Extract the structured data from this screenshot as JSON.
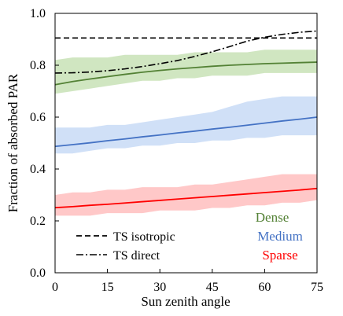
{
  "chart_data": {
    "type": "line",
    "xlabel": "Sun zenith angle",
    "ylabel": "Fraction of absorbed PAR",
    "xlim": [
      0,
      75
    ],
    "ylim": [
      0,
      1.0
    ],
    "x_ticks": [
      "0",
      "15",
      "30",
      "45",
      "60",
      "75"
    ],
    "y_ticks": [
      "0.0",
      "0.2",
      "0.4",
      "0.6",
      "0.8",
      "1.0"
    ],
    "grid": false,
    "series": [
      {
        "name": "Dense",
        "color": "#538135",
        "band_color": "#a9d18e",
        "x": [
          0,
          5,
          10,
          15,
          20,
          25,
          30,
          35,
          40,
          45,
          50,
          55,
          60,
          65,
          70,
          75
        ],
        "values": [
          0.725,
          0.737,
          0.747,
          0.756,
          0.765,
          0.773,
          0.78,
          0.786,
          0.791,
          0.796,
          0.8,
          0.803,
          0.806,
          0.808,
          0.81,
          0.812
        ],
        "band_low": [
          0.69,
          0.7,
          0.71,
          0.72,
          0.73,
          0.74,
          0.74,
          0.75,
          0.75,
          0.76,
          0.76,
          0.76,
          0.77,
          0.77,
          0.77,
          0.77
        ],
        "band_high": [
          0.82,
          0.83,
          0.83,
          0.83,
          0.84,
          0.84,
          0.84,
          0.84,
          0.85,
          0.85,
          0.85,
          0.85,
          0.86,
          0.86,
          0.86,
          0.86
        ]
      },
      {
        "name": "Medium",
        "color": "#4472c4",
        "band_color": "#a9c7f0",
        "x": [
          0,
          5,
          10,
          15,
          20,
          25,
          30,
          35,
          40,
          45,
          50,
          55,
          60,
          65,
          70,
          75
        ],
        "values": [
          0.487,
          0.494,
          0.501,
          0.509,
          0.516,
          0.524,
          0.531,
          0.539,
          0.546,
          0.554,
          0.561,
          0.569,
          0.577,
          0.585,
          0.592,
          0.6
        ],
        "band_low": [
          0.46,
          0.46,
          0.47,
          0.48,
          0.48,
          0.49,
          0.49,
          0.5,
          0.5,
          0.51,
          0.51,
          0.52,
          0.52,
          0.53,
          0.53,
          0.53
        ],
        "band_high": [
          0.56,
          0.56,
          0.56,
          0.57,
          0.57,
          0.58,
          0.59,
          0.6,
          0.61,
          0.62,
          0.64,
          0.66,
          0.67,
          0.68,
          0.68,
          0.68
        ]
      },
      {
        "name": "Sparse",
        "color": "#ff0000",
        "band_color": "#ff9b9b",
        "x": [
          0,
          5,
          10,
          15,
          20,
          25,
          30,
          35,
          40,
          45,
          50,
          55,
          60,
          65,
          70,
          75
        ],
        "values": [
          0.251,
          0.255,
          0.26,
          0.264,
          0.269,
          0.274,
          0.279,
          0.284,
          0.289,
          0.294,
          0.299,
          0.304,
          0.309,
          0.314,
          0.319,
          0.325
        ],
        "band_low": [
          0.22,
          0.22,
          0.22,
          0.23,
          0.23,
          0.23,
          0.24,
          0.24,
          0.24,
          0.25,
          0.25,
          0.26,
          0.26,
          0.27,
          0.27,
          0.28
        ],
        "band_high": [
          0.3,
          0.31,
          0.31,
          0.32,
          0.32,
          0.33,
          0.33,
          0.33,
          0.34,
          0.34,
          0.35,
          0.36,
          0.37,
          0.38,
          0.38,
          0.38
        ]
      },
      {
        "name": "TS isotropic",
        "color": "#000000",
        "dash": "dashed",
        "x": [
          0,
          75
        ],
        "values": [
          0.905,
          0.905
        ]
      },
      {
        "name": "TS direct",
        "color": "#000000",
        "dash": "dashdot",
        "x": [
          0,
          5,
          10,
          15,
          20,
          25,
          30,
          35,
          40,
          45,
          50,
          55,
          60,
          65,
          70,
          75
        ],
        "values": [
          0.77,
          0.771,
          0.774,
          0.779,
          0.786,
          0.795,
          0.806,
          0.818,
          0.834,
          0.852,
          0.872,
          0.893,
          0.908,
          0.919,
          0.927,
          0.932
        ]
      }
    ]
  }
}
